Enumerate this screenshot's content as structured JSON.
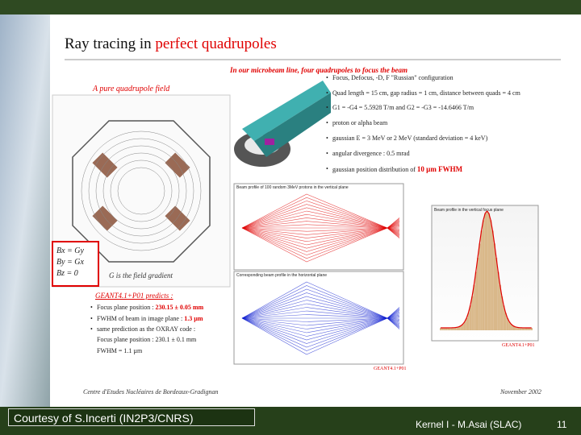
{
  "slide": {
    "title": {
      "plain": "Ray tracing in ",
      "highlight": "perfect quadrupoles"
    },
    "intro": "In our microbeam line, four quadrupoles to focus the beam",
    "setup_bullets": [
      "Focus, Defocus, -D, F \"Russian\" configuration",
      "Quad length = 15 cm, gap radius = 1 cm, distance between quads = 4 cm",
      "G1 = -G4 = 5.5928 T/m and G2 = -G3 = -14.6466 T/m",
      "proton or alpha beam",
      "gaussian E = 3 MeV or 2 MeV (standard deviation = 4 keV)",
      "angular divergence : 0.5 mrad"
    ],
    "last_bullet": {
      "plain": "gaussian position distribution of ",
      "highlight": "10 µm FWHM"
    },
    "field_caption": "A pure quadrupole field",
    "field_equations": [
      "Bx = Gy",
      "By = Gx",
      "Bz = 0"
    ],
    "gradient_note": "G is the field gradient",
    "prediction_heading": "GEANT4.1+P01 predicts :",
    "predictions": [
      {
        "plain": "Focus plane position : ",
        "highlight": "230.15 ± 0.05 mm"
      },
      {
        "plain": "FWHM of beam in image plane : ",
        "highlight": "1.3 µm"
      }
    ],
    "same_prediction": "same prediction as the OXRAY code :",
    "oxray": [
      "Focus plane position : 230.1 ± 0.1 mm",
      "FWHM = 1.1 µm"
    ],
    "plot_titles": [
      "Beam profile of 100 random 3MeV protons in the vertical plane",
      "Corresponding beam profile in the horizontal plane",
      "Beam profile in the vertical focus plane"
    ],
    "plot_credit": "GEANT4.1+P01",
    "institute": "Centre d'Etudes Nucléaires de Bordeaux-Gradignan",
    "date": "November 2002",
    "courtesy": "Courtesy of S.Incerti (IN2P3/CNRS)",
    "footer": "Kernel I - M.Asai (SLAC)",
    "page": "11"
  }
}
